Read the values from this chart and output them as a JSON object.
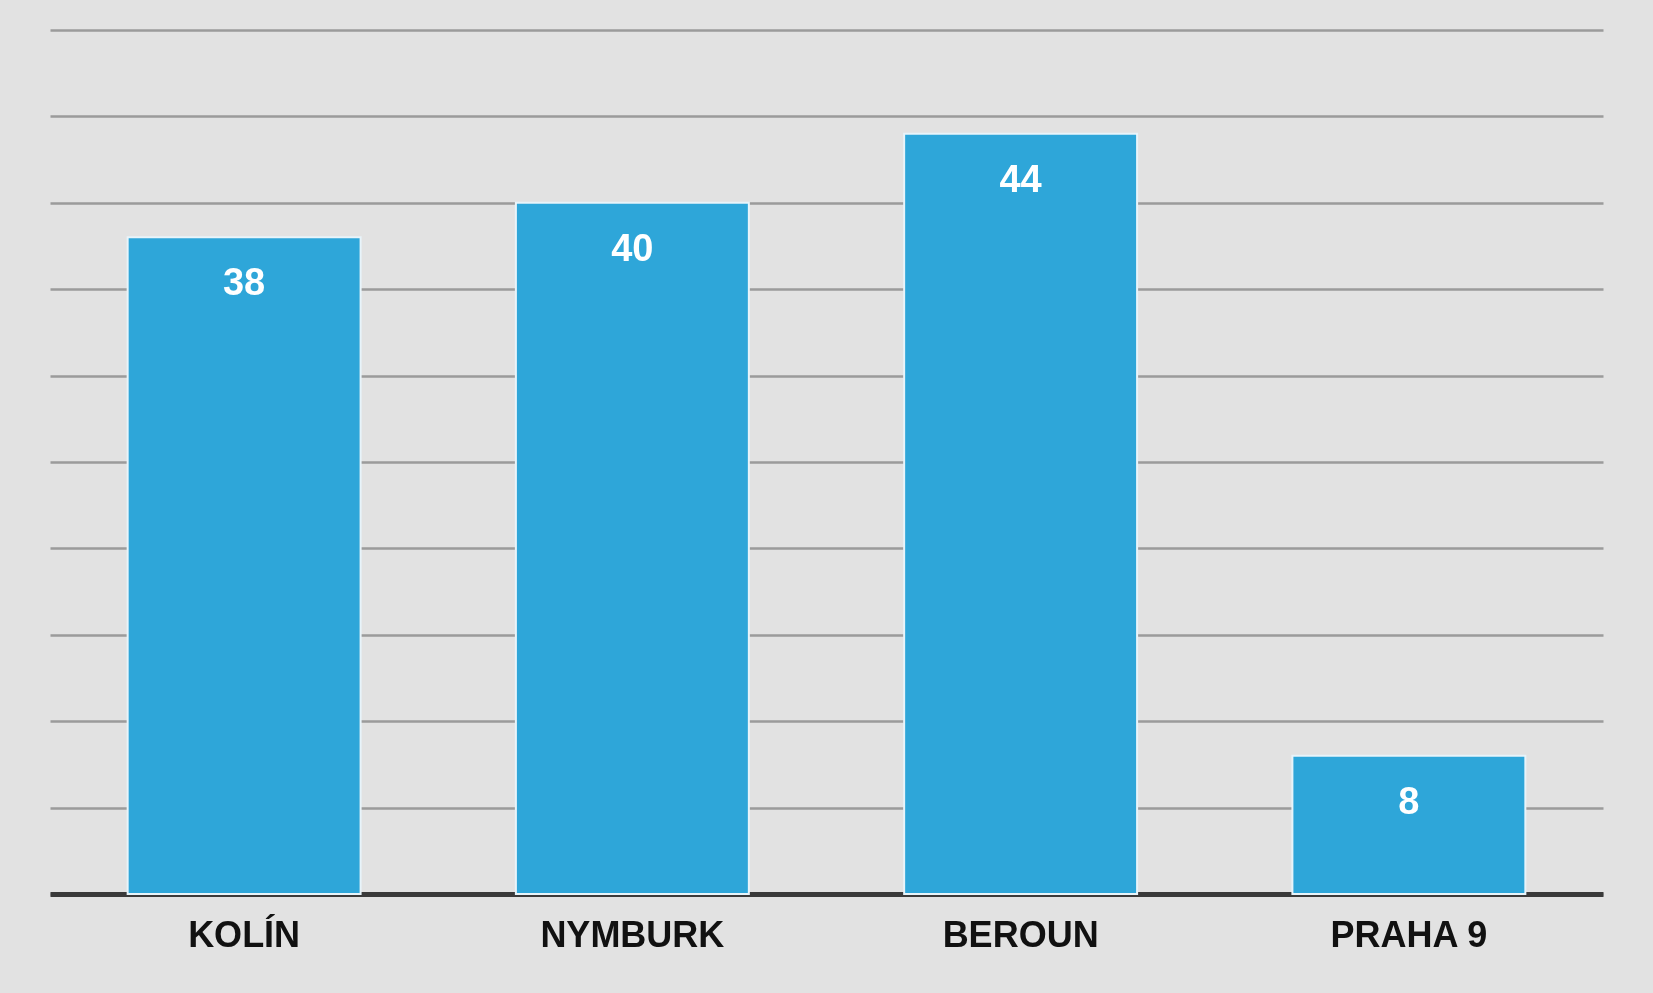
{
  "chart_data": {
    "type": "bar",
    "categories": [
      "KOLÍN",
      "NYMBURK",
      "BEROUN",
      "PRAHA 9"
    ],
    "values": [
      38,
      40,
      44,
      8
    ],
    "color": "#2ea6d9",
    "ylim": [
      0,
      50
    ],
    "yticks": [
      {
        "value": 0,
        "label": null
      },
      {
        "value": 5,
        "label": null
      },
      {
        "value": 10,
        "label": null
      },
      {
        "value": 15,
        "label": null
      },
      {
        "value": 20,
        "label": null
      },
      {
        "value": 25,
        "label": null
      },
      {
        "value": 30,
        "label": null
      },
      {
        "value": 35,
        "label": null
      },
      {
        "value": 40,
        "label": null
      },
      {
        "value": 45,
        "label": null
      },
      {
        "value": 50,
        "label": null
      }
    ],
    "grid": "y",
    "data_labels": true,
    "tick_labels": "x"
  }
}
